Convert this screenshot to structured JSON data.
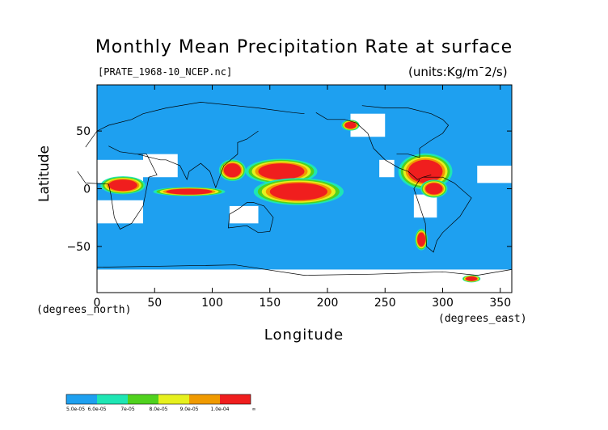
{
  "chart_data": {
    "type": "heatmap",
    "title": "Monthly Mean Precipitation Rate at surface",
    "subtitle_file": "[PRATE_1968-10_NCEP.nc]",
    "units": "(units:Kg/m¯2/s)",
    "xlabel": "Longitude",
    "ylabel": "Latitude",
    "x_unit_note": "(degrees_east)",
    "y_unit_note": "(degrees_north)",
    "xlim": [
      0,
      360
    ],
    "ylim": [
      -90,
      90
    ],
    "x_ticks": [
      "0",
      "50",
      "100",
      "150",
      "200",
      "250",
      "300",
      "350"
    ],
    "x_tick_values": [
      0,
      50,
      100,
      150,
      200,
      250,
      300,
      350
    ],
    "y_ticks": [
      "50",
      "0",
      "−50"
    ],
    "y_tick_values": [
      50,
      0,
      -50
    ],
    "colorbar": {
      "labels": [
        "5.0e-05",
        "6.0e-05",
        "7e-05",
        "8.0e-05",
        "9.0e-05",
        "1.0e-04",
        "∞"
      ],
      "colors": [
        "#1ea0f0",
        "#1ee6b4",
        "#50d21e",
        "#e6f01e",
        "#f09a00",
        "#f01e1e"
      ]
    },
    "background_color": "#1ea0f0",
    "regions": [
      {
        "level": 5,
        "lon": [
          140,
          180
        ],
        "lat": [
          8,
          22
        ]
      },
      {
        "level": 5,
        "lon": [
          150,
          200
        ],
        "lat": [
          -10,
          5
        ]
      },
      {
        "level": 5,
        "lon": [
          60,
          100
        ],
        "lat": [
          -5,
          0
        ]
      },
      {
        "level": 5,
        "lon": [
          270,
          300
        ],
        "lat": [
          5,
          25
        ]
      },
      {
        "level": 5,
        "lon": [
          285,
          300
        ],
        "lat": [
          -5,
          5
        ]
      },
      {
        "level": 5,
        "lon": [
          10,
          35
        ],
        "lat": [
          -2,
          8
        ]
      },
      {
        "level": 5,
        "lon": [
          215,
          225
        ],
        "lat": [
          52,
          58
        ]
      },
      {
        "level": 5,
        "lon": [
          278,
          285
        ],
        "lat": [
          -50,
          -38
        ]
      },
      {
        "level": 5,
        "lon": [
          110,
          125
        ],
        "lat": [
          10,
          22
        ]
      },
      {
        "level": 5,
        "lon": [
          320,
          330
        ],
        "lat": [
          -80,
          -76
        ]
      }
    ],
    "missing_regions": [
      {
        "lon": [
          40,
          70
        ],
        "lat": [
          10,
          30
        ]
      },
      {
        "lon": [
          0,
          40
        ],
        "lat": [
          5,
          25
        ]
      },
      {
        "lon": [
          0,
          40
        ],
        "lat": [
          -30,
          -10
        ]
      },
      {
        "lon": [
          115,
          140
        ],
        "lat": [
          -30,
          -15
        ]
      },
      {
        "lon": [
          275,
          295
        ],
        "lat": [
          -25,
          -5
        ]
      },
      {
        "lon": [
          245,
          258
        ],
        "lat": [
          10,
          25
        ]
      },
      {
        "lon": [
          220,
          250
        ],
        "lat": [
          45,
          65
        ]
      },
      {
        "lon": [
          0,
          360
        ],
        "lat": [
          -90,
          -70
        ]
      },
      {
        "lon": [
          330,
          360
        ],
        "lat": [
          5,
          20
        ]
      }
    ]
  }
}
